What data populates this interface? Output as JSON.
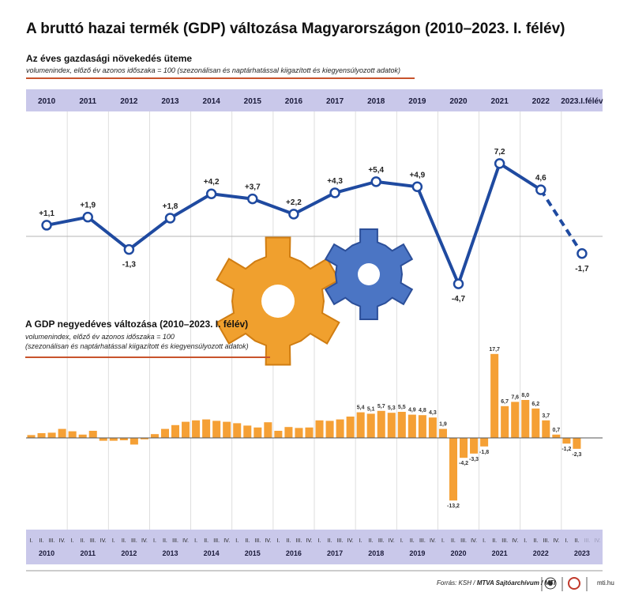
{
  "title": "A bruttó hazai termék (GDP) változása Magyarországon (2010–2023. I. félév)",
  "annual": {
    "subtitle": "Az éves gazdasági növekedés üteme",
    "note": "volumenindex, előző év azonos időszaka = 100 (szezonálisan és naptárhatással kiigazított és kiegyensúlyozott adatok)"
  },
  "quarterly": {
    "subtitle": "A GDP negyedéves változása (2010–2023. I. félév)",
    "note1": "volumenindex, előző év azonos időszaka = 100",
    "note2": "(szezonálisan és naptárhatással kiigazított és kiegyensúlyozott adatok)"
  },
  "footer": {
    "source": "Forrás: KSH /",
    "org": "MTVA Sajtóarchívum / MTI",
    "site": "mti.hu"
  },
  "colors": {
    "line": "#1f4aa0",
    "bar": "#f5a035",
    "band": "#c9c8ea",
    "accent": "#c8532c"
  },
  "chart_data": [
    {
      "type": "line",
      "title": "Az éves gazdasági növekedés üteme",
      "categories": [
        "2010",
        "2011",
        "2012",
        "2013",
        "2014",
        "2015",
        "2016",
        "2017",
        "2018",
        "2019",
        "2020",
        "2021",
        "2022",
        "2023.I.félév"
      ],
      "values": [
        1.1,
        1.9,
        -1.3,
        1.8,
        4.2,
        3.7,
        2.2,
        4.3,
        5.4,
        4.9,
        -4.7,
        7.2,
        4.6,
        -1.7
      ],
      "labels": [
        "+1,1",
        "+1,9",
        "-1,3",
        "+1,8",
        "+4,2",
        "+3,7",
        "+2,2",
        "+4,3",
        "+5,4",
        "+4,9",
        "-4,7",
        "7,2",
        "4,6",
        "-1,7"
      ],
      "last_segment_style": "dashed",
      "ylim": [
        -6,
        8
      ],
      "grid": "vertical"
    },
    {
      "type": "bar",
      "title": "A GDP negyedéves változása (2010–2023. I. félév)",
      "quarter_labels": [
        "I.",
        "II.",
        "III.",
        "IV."
      ],
      "years": [
        "2010",
        "2011",
        "2012",
        "2013",
        "2014",
        "2015",
        "2016",
        "2017",
        "2018",
        "2019",
        "2020",
        "2021",
        "2022",
        "2023"
      ],
      "values": [
        0.6,
        1.0,
        1.1,
        1.9,
        1.4,
        0.7,
        1.5,
        -0.6,
        -0.6,
        -0.5,
        -1.4,
        -0.3,
        0.8,
        1.9,
        2.7,
        3.4,
        3.7,
        3.9,
        3.6,
        3.4,
        3.1,
        2.6,
        2.2,
        3.3,
        1.5,
        2.3,
        2.1,
        2.2,
        3.7,
        3.6,
        3.9,
        4.5,
        5.4,
        5.1,
        5.7,
        5.3,
        5.5,
        4.9,
        4.8,
        4.3,
        1.9,
        -13.2,
        -4.2,
        -3.3,
        -1.8,
        17.7,
        6.7,
        7.6,
        8.0,
        6.2,
        3.7,
        0.7,
        -1.2,
        -2.3
      ],
      "data_labels": [
        {
          "index": 32,
          "text": "5,4"
        },
        {
          "index": 33,
          "text": "5,1"
        },
        {
          "index": 34,
          "text": "5,7"
        },
        {
          "index": 35,
          "text": "5,3"
        },
        {
          "index": 36,
          "text": "5,5"
        },
        {
          "index": 37,
          "text": "4,9"
        },
        {
          "index": 38,
          "text": "4,8"
        },
        {
          "index": 39,
          "text": "4,3"
        },
        {
          "index": 40,
          "text": "1,9"
        },
        {
          "index": 41,
          "text": "-13,2"
        },
        {
          "index": 42,
          "text": "-4,2"
        },
        {
          "index": 43,
          "text": "-3,3"
        },
        {
          "index": 44,
          "text": "-1,8"
        },
        {
          "index": 45,
          "text": "17,7"
        },
        {
          "index": 46,
          "text": "6,7"
        },
        {
          "index": 47,
          "text": "7,6"
        },
        {
          "index": 48,
          "text": "8,0"
        },
        {
          "index": 49,
          "text": "6,2"
        },
        {
          "index": 50,
          "text": "3,7"
        },
        {
          "index": 51,
          "text": "0,7"
        },
        {
          "index": 52,
          "text": "-1,2"
        },
        {
          "index": 53,
          "text": "-2,3"
        }
      ],
      "ylim": [
        -14,
        19
      ]
    }
  ]
}
